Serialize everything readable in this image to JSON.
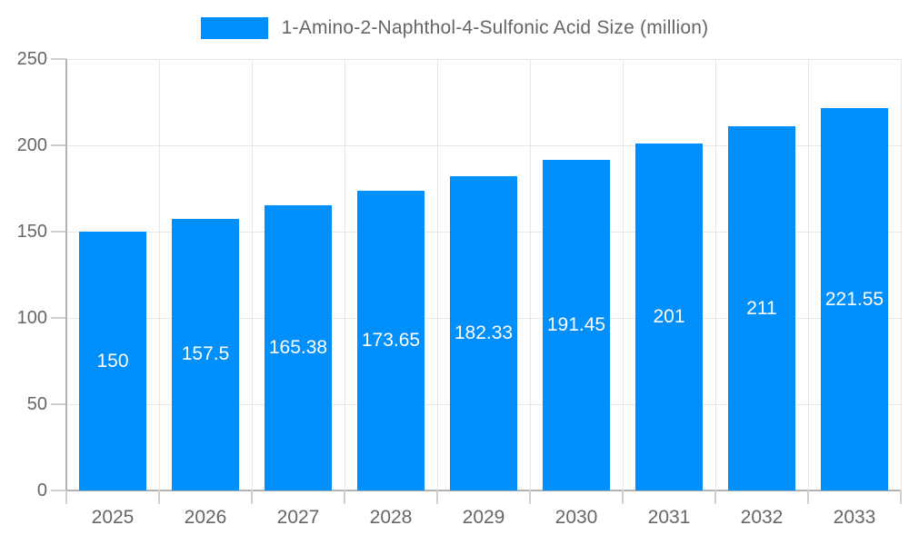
{
  "chart_data": {
    "type": "bar",
    "title": "1-Amino-2-Naphthol-4-Sulfonic Acid Size (million)",
    "categories": [
      "2025",
      "2026",
      "2027",
      "2028",
      "2029",
      "2030",
      "2031",
      "2032",
      "2033"
    ],
    "values": [
      150,
      157.5,
      165.38,
      173.65,
      182.33,
      191.45,
      201,
      211,
      221.55
    ],
    "value_labels": [
      "150",
      "157.5",
      "165.38",
      "173.65",
      "182.33",
      "191.45",
      "201",
      "211",
      "221.55"
    ],
    "xlabel": "",
    "ylabel": "",
    "ylim": [
      0,
      250
    ],
    "yticks": [
      0,
      50,
      100,
      150,
      200,
      250
    ],
    "grid": true,
    "legend_position": "top",
    "colors": {
      "bar": "#008FFB",
      "axis_label": "#666666",
      "grid_line": "#e7e7e7",
      "axis_line": "#b3b3b3",
      "tick": "#cfcfcf",
      "data_label": "#ffffff",
      "background": "#ffffff"
    }
  }
}
